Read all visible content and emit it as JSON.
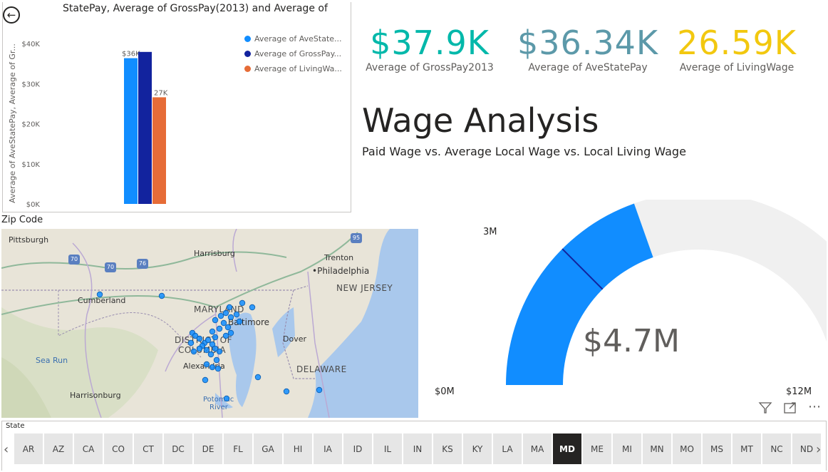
{
  "chart": {
    "title": "StatePay, Average of GrossPay(2013) and Average of",
    "y_axis_label": "Average of AveStatePay, Average of Gr...",
    "legend": [
      "Average of AveState...",
      "Average of GrossPay...",
      "Average of LivingWa..."
    ],
    "data_labels": [
      "$36K",
      "27K"
    ]
  },
  "chart_data": {
    "type": "bar",
    "title": "StatePay, Average of GrossPay(2013) and Average of",
    "ylabel": "Average of AveStatePay, Average of Gr...",
    "ylim": [
      0,
      40000
    ],
    "yticks": [
      "$0K",
      "$10K",
      "$20K",
      "$30K",
      "$40K"
    ],
    "ytick_values": [
      0,
      10000,
      20000,
      30000,
      40000
    ],
    "grid": false,
    "legend_position": "right",
    "series": [
      {
        "name": "Average of AveState...",
        "values": [
          36340
        ],
        "color": "#118dff",
        "label": "$36K"
      },
      {
        "name": "Average of GrossPay...",
        "values": [
          37900
        ],
        "color": "#12239e",
        "label": ""
      },
      {
        "name": "Average of LivingWa...",
        "values": [
          26590
        ],
        "color": "#e66c37",
        "label": "27K"
      }
    ]
  },
  "kpis": [
    {
      "value": "$37.9K",
      "label": "Average of GrossPay2013",
      "color": "#01b8aa"
    },
    {
      "value": "$36.34K",
      "label": "Average of AveStatePay",
      "color": "#5c99a9"
    },
    {
      "value": "26.59K",
      "label": "Average of LivingWage",
      "color": "#f2c80f"
    }
  ],
  "report": {
    "title": "Wage Analysis",
    "subtitle": "Paid Wage vs. Average Local Wage vs. Local Living Wage"
  },
  "map": {
    "title": "Zip Code",
    "places": {
      "pittsburgh": "Pittsburgh",
      "harrisburg": "Harrisburg",
      "trenton": "Trenton",
      "philadelphia": "Philadelphia",
      "cumberland": "Cumberland",
      "baltimore": "Baltimore",
      "dover": "Dover",
      "alexandria": "Alexandria",
      "harrisonburg": "Harrisonburg"
    },
    "regions": {
      "new_jersey": "NEW JERSEY",
      "maryland": "MARYLAND",
      "district_of": "DISTRICT OF",
      "columbia": "COLUMBIA",
      "delaware": "DELAWARE"
    },
    "water": {
      "sea_run": "Sea Run",
      "potomac": "Potomac",
      "river": "River"
    },
    "highways": [
      "70",
      "70",
      "76",
      "95"
    ]
  },
  "gauge": {
    "value_text": "$4.7M",
    "value": 4.7,
    "min_label": "$0M",
    "max_label": "$12M",
    "min": 0,
    "max": 12,
    "target_label": "3M",
    "target": 3,
    "fill_color": "#118dff",
    "track_color": "#f0f0f0"
  },
  "toolbar": {
    "filter_icon": "filter-icon",
    "focus_icon": "focus-mode-icon",
    "more_icon": "more-options-icon",
    "more": "⋯"
  },
  "slicer": {
    "title": "State",
    "selected": "MD",
    "items": [
      "AR",
      "AZ",
      "CA",
      "CO",
      "CT",
      "DC",
      "DE",
      "FL",
      "GA",
      "HI",
      "IA",
      "ID",
      "IL",
      "IN",
      "KS",
      "KY",
      "LA",
      "MA",
      "MD",
      "ME",
      "MI",
      "MN",
      "MO",
      "MS",
      "MT",
      "NC",
      "ND"
    ]
  }
}
